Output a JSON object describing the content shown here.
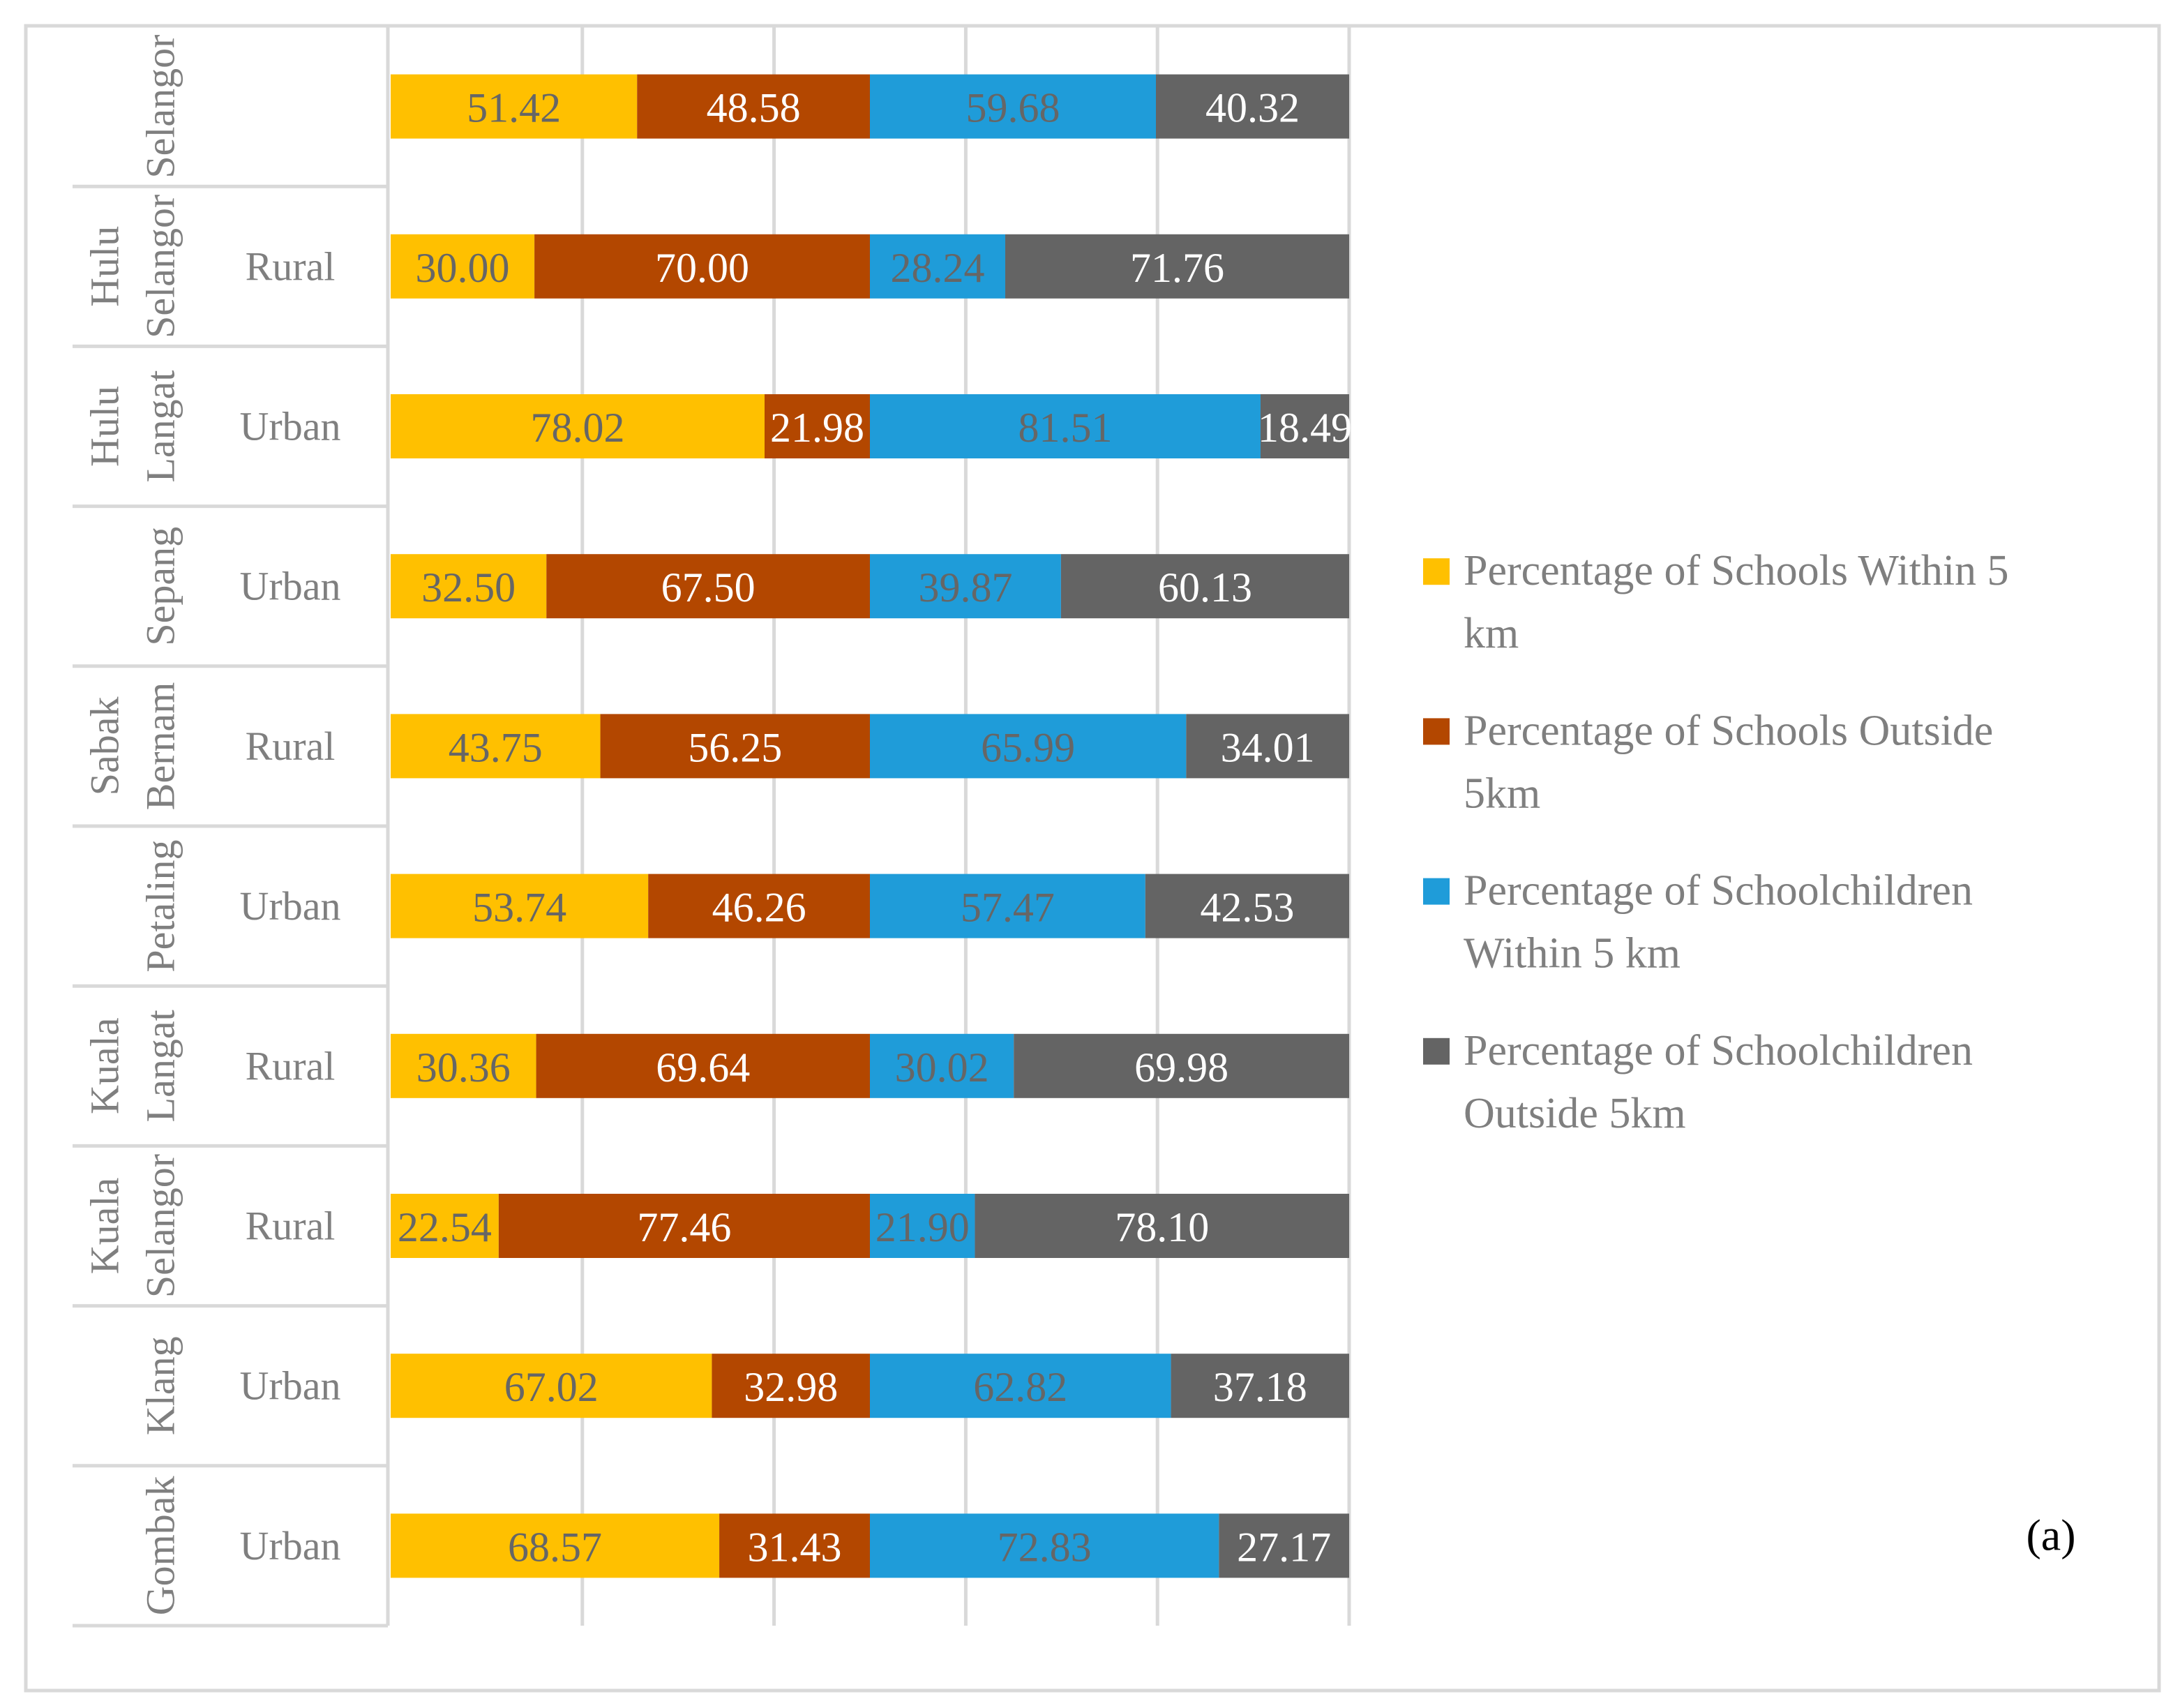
{
  "chart_data": {
    "type": "bar",
    "orientation": "horizontal-stacked",
    "categories": [
      {
        "region": "Selangor",
        "area": ""
      },
      {
        "region": "Hulu Selangor",
        "area": "Rural"
      },
      {
        "region": "Hulu Langat",
        "area": "Urban"
      },
      {
        "region": "Sepang",
        "area": "Urban"
      },
      {
        "region": "Sabak Bernam",
        "area": "Rural"
      },
      {
        "region": "Petaling",
        "area": "Urban"
      },
      {
        "region": "Kuala Langat",
        "area": "Rural"
      },
      {
        "region": "Kuala Selangor",
        "area": "Rural"
      },
      {
        "region": "Klang",
        "area": "Urban"
      },
      {
        "region": "Gombak",
        "area": "Urban"
      }
    ],
    "series": [
      {
        "name": "Percentage of Schools Within 5 km",
        "color": "#FFC000",
        "label_color": "#666666",
        "values": [
          "51.42",
          "30.00",
          "78.02",
          "32.50",
          "43.75",
          "53.74",
          "30.36",
          "22.54",
          "67.02",
          "68.57"
        ]
      },
      {
        "name": "Percentage of Schools Outside 5km",
        "color": "#B34700",
        "label_color": "#ffffff",
        "values": [
          "48.58",
          "70.00",
          "21.98",
          "67.50",
          "56.25",
          "46.26",
          "69.64",
          "77.46",
          "32.98",
          "31.43"
        ]
      },
      {
        "name": "Percentage of Schoolchildren Within 5 km",
        "color": "#1F9CD9",
        "label_color": "#666666",
        "values": [
          "59.68",
          "28.24",
          "81.51",
          "39.87",
          "65.99",
          "57.47",
          "30.02",
          "21.90",
          "62.82",
          "72.83"
        ]
      },
      {
        "name": "Percentage of Schoolchildren Outside 5km",
        "color": "#646464",
        "label_color": "#ffffff",
        "values": [
          "40.32",
          "71.76",
          "18.49",
          "60.13",
          "34.01",
          "42.53",
          "69.98",
          "78.10",
          "37.18",
          "27.17"
        ]
      }
    ],
    "xlim": [
      0,
      200
    ],
    "x_grid_step": 40,
    "grid": true,
    "legend_position": "right",
    "title": "",
    "xlabel": "",
    "ylabel": "",
    "annotation": "(a)"
  }
}
